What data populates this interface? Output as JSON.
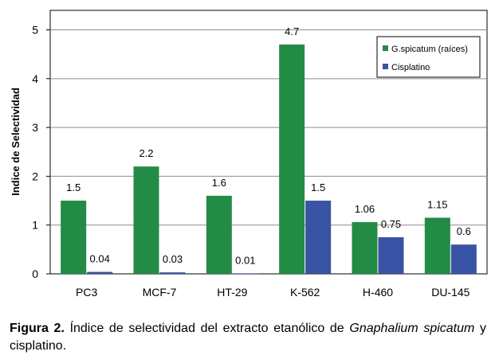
{
  "chart_data": {
    "type": "bar",
    "categories": [
      "PC3",
      "MCF-7",
      "HT-29",
      "K-562",
      "H-460",
      "DU-145"
    ],
    "series": [
      {
        "name": "G.spicatum (raíces)",
        "color": "#228B45",
        "values": [
          1.5,
          2.2,
          1.6,
          4.7,
          1.06,
          1.15
        ],
        "labels": [
          "1.5",
          "2.2",
          "1.6",
          "4.7",
          "1.06",
          "1.15"
        ]
      },
      {
        "name": "Cisplatino",
        "color": "#3953A4",
        "values": [
          0.04,
          0.03,
          0.01,
          1.5,
          0.75,
          0.6
        ],
        "labels": [
          "0.04",
          "0.03",
          "0.01",
          "1.5",
          "0.75",
          "0.6"
        ]
      }
    ],
    "ylabel": "Indice de Selectividad",
    "ylim": [
      0,
      5.4
    ],
    "yticks": [
      0,
      1,
      2,
      3,
      4,
      5
    ],
    "grid": true,
    "legend_position": "top-right"
  },
  "caption": {
    "label": "Figura 2.",
    "text_before": " Índice de selectividad del extracto etanólico de ",
    "species_line1": "Gnaphalium",
    "species_line2": "spicatum",
    "text_after": " y cisplatino."
  }
}
